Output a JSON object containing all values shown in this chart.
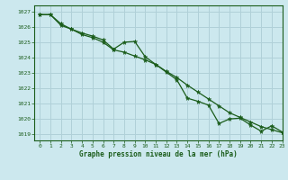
{
  "title": "Graphe pression niveau de la mer (hPa)",
  "bg_color": "#cce8ee",
  "grid_color": "#b0d0d8",
  "line_color": "#1a5c1a",
  "xlim": [
    -0.5,
    23
  ],
  "ylim": [
    1018.6,
    1027.4
  ],
  "yticks": [
    1019,
    1020,
    1021,
    1022,
    1023,
    1024,
    1025,
    1026,
    1027
  ],
  "xticks": [
    0,
    1,
    2,
    3,
    4,
    5,
    6,
    7,
    8,
    9,
    10,
    11,
    12,
    13,
    14,
    15,
    16,
    17,
    18,
    19,
    20,
    21,
    22,
    23
  ],
  "series1": [
    1026.8,
    1026.8,
    1026.2,
    1025.85,
    1025.6,
    1025.4,
    1025.15,
    1024.55,
    1025.0,
    1025.05,
    1024.05,
    1023.55,
    1023.05,
    1022.55,
    1021.35,
    1021.15,
    1020.9,
    1019.7,
    1020.0,
    1020.05,
    1019.6,
    1019.2,
    1019.55,
    1019.15
  ],
  "series2": [
    1026.8,
    1026.8,
    1026.1,
    1025.85,
    1025.5,
    1025.3,
    1025.0,
    1024.5,
    1024.35,
    1024.1,
    1023.85,
    1023.55,
    1023.1,
    1022.7,
    1022.2,
    1021.75,
    1021.3,
    1020.85,
    1020.4,
    1020.1,
    1019.8,
    1019.5,
    1019.3,
    1019.1
  ]
}
